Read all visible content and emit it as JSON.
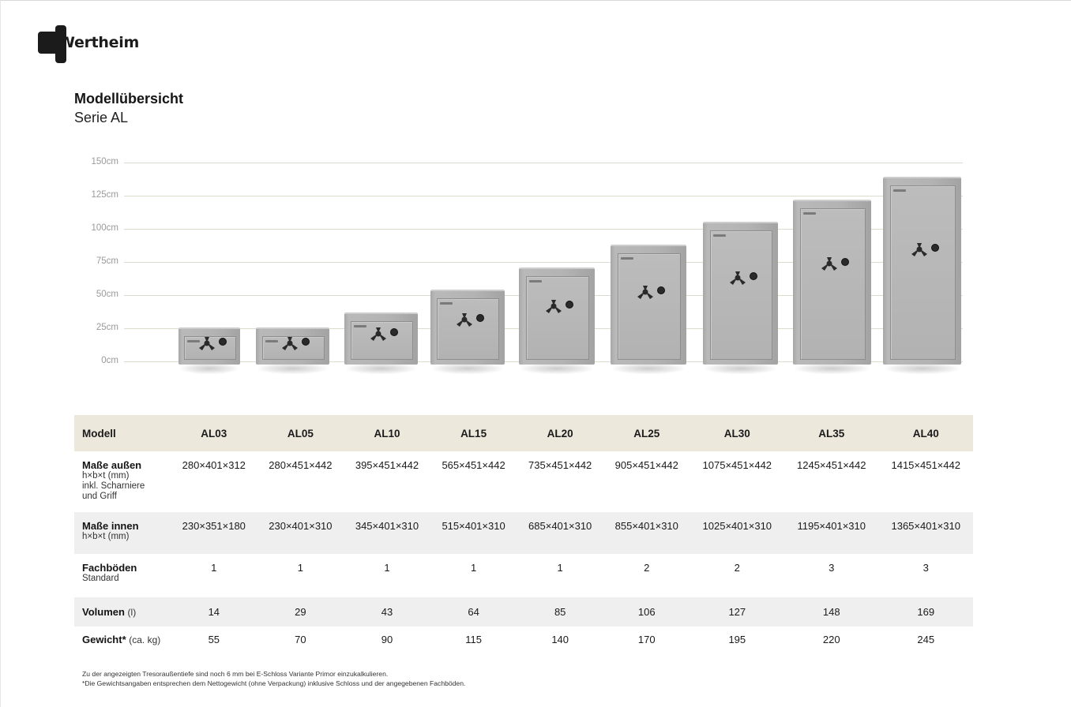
{
  "brand": {
    "name": "Wertheim"
  },
  "heading": {
    "title": "Modellübersicht",
    "subtitle": "Serie AL"
  },
  "chart_data": {
    "type": "bar",
    "categories": [
      "AL03",
      "AL05",
      "AL10",
      "AL15",
      "AL20",
      "AL25",
      "AL30",
      "AL35",
      "AL40"
    ],
    "values": [
      28.0,
      28.0,
      39.5,
      56.5,
      73.5,
      90.5,
      107.5,
      124.5,
      141.5
    ],
    "ylim": [
      0,
      150
    ],
    "yticks": [
      "150cm",
      "125cm",
      "100cm",
      "75cm",
      "50cm",
      "25cm",
      "0cm"
    ],
    "grid": true,
    "colors": {
      "safe": "#b3b3b3",
      "handle": "#2a2a2a",
      "grid": "#dcdccc"
    }
  },
  "table": {
    "model_label": "Modell",
    "models": [
      "AL03",
      "AL05",
      "AL10",
      "AL15",
      "AL20",
      "AL25",
      "AL30",
      "AL35",
      "AL40"
    ],
    "rows": [
      {
        "label": "Maße außen",
        "sub": [
          "h×b×t (mm)",
          "inkl. Scharniere",
          "und Griff"
        ],
        "values": [
          "280×401×312",
          "280×451×442",
          "395×451×442",
          "565×451×442",
          "735×451×442",
          "905×451×442",
          "1075×451×442",
          "1245×451×442",
          "1415×451×442"
        ]
      },
      {
        "label": "Maße innen",
        "sub": [
          "h×b×t (mm)"
        ],
        "values": [
          "230×351×180",
          "230×401×310",
          "345×401×310",
          "515×401×310",
          "685×401×310",
          "855×401×310",
          "1025×401×310",
          "1195×401×310",
          "1365×401×310"
        ]
      },
      {
        "label": "Fachböden",
        "sub": [
          "Standard"
        ],
        "values": [
          "1",
          "1",
          "1",
          "1",
          "1",
          "2",
          "2",
          "3",
          "3"
        ]
      },
      {
        "label": "Volumen",
        "inline": "(l)",
        "values": [
          "14",
          "29",
          "43",
          "64",
          "85",
          "106",
          "127",
          "148",
          "169"
        ]
      },
      {
        "label": "Gewicht*",
        "inline": "(ca. kg)",
        "values": [
          "55",
          "70",
          "90",
          "115",
          "140",
          "170",
          "195",
          "220",
          "245"
        ]
      }
    ]
  },
  "footnotes": [
    "Zu der angezeigten Tresoraußentiefe sind noch 6 mm bei E-Schloss Variante Primor einzukalkulieren.",
    "*Die Gewichtsangaben entsprechen dem Nettogewicht (ohne Verpackung) inklusive Schloss und der angegebenen Fachböden."
  ]
}
